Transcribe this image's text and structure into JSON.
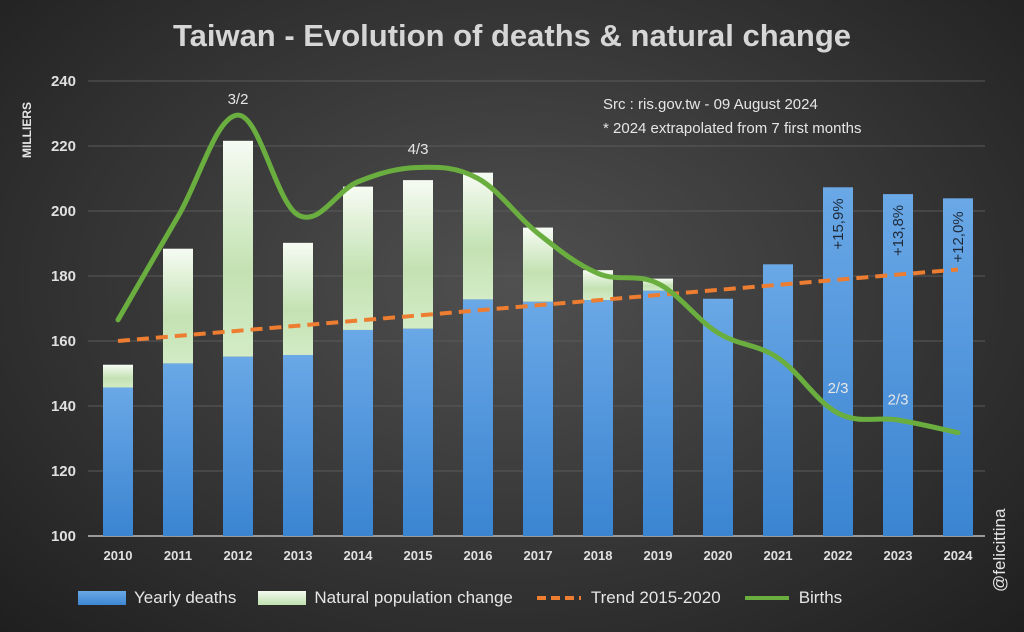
{
  "chart_data": {
    "type": "bar",
    "title": "Taiwan - Evolution of deaths & natural change",
    "ylabel": "MILLIERS",
    "xlabel": "",
    "ylim": [
      100,
      240
    ],
    "yticks": [
      100,
      120,
      140,
      160,
      180,
      200,
      220,
      240
    ],
    "grid": true,
    "legend_placement": "bottom",
    "categories": [
      "2010",
      "2011",
      "2012",
      "2013",
      "2014",
      "2015",
      "2016",
      "2017",
      "2018",
      "2019",
      "2020",
      "2021",
      "2022",
      "2023",
      "2024"
    ],
    "series": [
      {
        "name": "Yearly deaths",
        "type": "stacked-bar",
        "color": "#4a90d9",
        "values": [
          145.7,
          153.1,
          155.2,
          155.7,
          163.4,
          163.8,
          172.8,
          172.1,
          172.6,
          175.5,
          173.0,
          183.6,
          207.3,
          205.2,
          203.9
        ]
      },
      {
        "name": "Natural population change",
        "type": "stacked-bar",
        "color": "#c5e3b4",
        "values": [
          7.0,
          35.3,
          66.4,
          34.5,
          44.1,
          45.7,
          39.0,
          22.8,
          9.2,
          3.7,
          null,
          null,
          null,
          null,
          null
        ]
      },
      {
        "name": "Trend 2015-2020",
        "type": "line-dashed",
        "color": "#ed7d31",
        "values": [
          160.0,
          161.6,
          163.1,
          164.7,
          166.3,
          167.9,
          169.4,
          171.0,
          172.6,
          174.1,
          175.7,
          177.3,
          178.9,
          180.4,
          182.0
        ]
      },
      {
        "name": "Births",
        "type": "line",
        "color": "#6aae3f",
        "values": [
          166.5,
          198.3,
          229.5,
          198.8,
          209.0,
          213.4,
          210.0,
          193.1,
          180.8,
          177.7,
          162.5,
          154.8,
          137.8,
          135.7,
          131.8
        ]
      }
    ],
    "annotations": [
      {
        "text": "3/2",
        "category": "2012",
        "y": 233
      },
      {
        "text": "4/3",
        "category": "2015",
        "y": 217.5
      },
      {
        "text": "2/3",
        "category": "2022",
        "y": 144
      },
      {
        "text": "2/3",
        "category": "2023",
        "y": 140.5
      },
      {
        "text": "+15,9%",
        "category": "2022",
        "y": 196,
        "rotated": true
      },
      {
        "text": "+13,8%",
        "category": "2023",
        "y": 194,
        "rotated": true
      },
      {
        "text": "+12,0%",
        "category": "2024",
        "y": 192,
        "rotated": true
      }
    ],
    "source_lines": [
      "Src : ris.gov.tw - 09 August 2024",
      "* 2024 extrapolated from 7 first months"
    ],
    "credit": "@felicittina"
  }
}
